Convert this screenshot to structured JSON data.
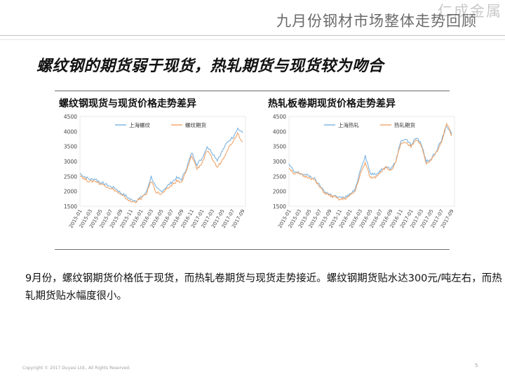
{
  "header": {
    "title": "九月份钢材市场整体走势回顾",
    "watermark": "仁成金属"
  },
  "heading": "螺纹钢的期货弱于现货，热轧期货与现货较为吻合",
  "colors": {
    "spot": "#7bb3e0",
    "futures": "#f0a468"
  },
  "chart_data": [
    {
      "type": "line",
      "title": "螺纹钢现货与现货价格走势差异",
      "legend": [
        "上海螺纹",
        "螺纹期货"
      ],
      "legend_placement": "top",
      "ylim": [
        1500,
        4500
      ],
      "yticks": [
        "4500",
        "4000",
        "3500",
        "3000",
        "2500",
        "2000",
        "1500"
      ],
      "xticks": [
        "2015-01",
        "2015-03",
        "2015-05",
        "2015-07",
        "2015-09",
        "2015-11",
        "2016-01",
        "2016-03",
        "2016-05",
        "2016-07",
        "2016-09",
        "2016-11",
        "2017-01",
        "2017-03",
        "2017-05",
        "2017-07",
        "2017-09"
      ],
      "series": [
        {
          "name": "上海螺纹",
          "x": [
            "2015-01",
            "2015-02",
            "2015-03",
            "2015-04",
            "2015-05",
            "2015-06",
            "2015-07",
            "2015-08",
            "2015-09",
            "2015-10",
            "2015-11",
            "2015-12",
            "2016-01",
            "2016-02",
            "2016-03",
            "2016-04",
            "2016-05",
            "2016-06",
            "2016-07",
            "2016-08",
            "2016-09",
            "2016-10",
            "2016-11",
            "2016-12",
            "2017-01",
            "2017-02",
            "2017-03",
            "2017-04",
            "2017-05",
            "2017-06",
            "2017-07",
            "2017-08",
            "2017-09"
          ],
          "values": [
            2600,
            2480,
            2400,
            2420,
            2300,
            2240,
            2160,
            2100,
            1950,
            1850,
            1720,
            1700,
            1800,
            1950,
            2500,
            2100,
            2000,
            2150,
            2300,
            2450,
            2400,
            2800,
            3300,
            2900,
            3100,
            3500,
            3300,
            3050,
            3350,
            3650,
            3800,
            4100,
            3950
          ]
        },
        {
          "name": "螺纹期货",
          "x": [
            "2015-01",
            "2015-02",
            "2015-03",
            "2015-04",
            "2015-05",
            "2015-06",
            "2015-07",
            "2015-08",
            "2015-09",
            "2015-10",
            "2015-11",
            "2015-12",
            "2016-01",
            "2016-02",
            "2016-03",
            "2016-04",
            "2016-05",
            "2016-06",
            "2016-07",
            "2016-08",
            "2016-09",
            "2016-10",
            "2016-11",
            "2016-12",
            "2017-01",
            "2017-02",
            "2017-03",
            "2017-04",
            "2017-05",
            "2017-06",
            "2017-07",
            "2017-08",
            "2017-09"
          ],
          "values": [
            2550,
            2400,
            2330,
            2350,
            2250,
            2200,
            2100,
            2030,
            1880,
            1780,
            1650,
            1660,
            1760,
            1900,
            2350,
            1980,
            1900,
            2050,
            2200,
            2350,
            2300,
            2700,
            3200,
            2750,
            2950,
            3350,
            3100,
            2800,
            3050,
            3400,
            3650,
            3950,
            3650
          ]
        }
      ]
    },
    {
      "type": "line",
      "title": "热轧板卷期现货价格走势差异",
      "legend": [
        "上海热轧",
        "热轧期货"
      ],
      "legend_placement": "top",
      "ylim": [
        1500,
        4500
      ],
      "yticks": [
        "4500",
        "4000",
        "3500",
        "3000",
        "2500",
        "2000",
        "1500"
      ],
      "xticks": [
        "2015-01",
        "2015-03",
        "2015-05",
        "2015-07",
        "2015-09",
        "2015-11",
        "2016-01",
        "2016-03",
        "2016-05",
        "2016-07",
        "2016-09",
        "2016-11",
        "2017-01",
        "2017-03",
        "2017-05",
        "2017-07",
        "2017-09"
      ],
      "series": [
        {
          "name": "上海热轧",
          "x": [
            "2015-01",
            "2015-02",
            "2015-03",
            "2015-04",
            "2015-05",
            "2015-06",
            "2015-07",
            "2015-08",
            "2015-09",
            "2015-10",
            "2015-11",
            "2015-12",
            "2016-01",
            "2016-02",
            "2016-03",
            "2016-04",
            "2016-05",
            "2016-06",
            "2016-07",
            "2016-08",
            "2016-09",
            "2016-10",
            "2016-11",
            "2016-12",
            "2017-01",
            "2017-02",
            "2017-03",
            "2017-04",
            "2017-05",
            "2017-06",
            "2017-07",
            "2017-08",
            "2017-09"
          ],
          "values": [
            2900,
            2650,
            2620,
            2560,
            2520,
            2420,
            2200,
            2000,
            1900,
            1850,
            1780,
            1800,
            1900,
            2050,
            2700,
            3200,
            2600,
            2550,
            2700,
            2850,
            2750,
            3000,
            3700,
            3750,
            3550,
            3800,
            3600,
            3000,
            3100,
            3350,
            3700,
            4200,
            3900
          ]
        },
        {
          "name": "热轧期货",
          "x": [
            "2015-01",
            "2015-02",
            "2015-03",
            "2015-04",
            "2015-05",
            "2015-06",
            "2015-07",
            "2015-08",
            "2015-09",
            "2015-10",
            "2015-11",
            "2015-12",
            "2016-01",
            "2016-02",
            "2016-03",
            "2016-04",
            "2016-05",
            "2016-06",
            "2016-07",
            "2016-08",
            "2016-09",
            "2016-10",
            "2016-11",
            "2016-12",
            "2017-01",
            "2017-02",
            "2017-03",
            "2017-04",
            "2017-05",
            "2017-06",
            "2017-07",
            "2017-08",
            "2017-09"
          ],
          "values": [
            2800,
            2600,
            2580,
            2500,
            2470,
            2380,
            2150,
            1950,
            1860,
            1800,
            1720,
            1760,
            1850,
            2000,
            2550,
            2950,
            2450,
            2480,
            2650,
            2800,
            2700,
            2950,
            3600,
            3600,
            3500,
            3750,
            3550,
            2900,
            3050,
            3300,
            3650,
            4300,
            3850
          ]
        }
      ]
    }
  ],
  "body": "9月份，螺纹钢期货价格低于现货，而热轧卷期货与现货走势接近。螺纹钢期货贴水达300元/吨左右，而热轧期货贴水幅度很小。",
  "footer": {
    "copyright": "Copyright © 2017 Duyasi Ltd., All Rights Reserved.",
    "page": "5"
  }
}
